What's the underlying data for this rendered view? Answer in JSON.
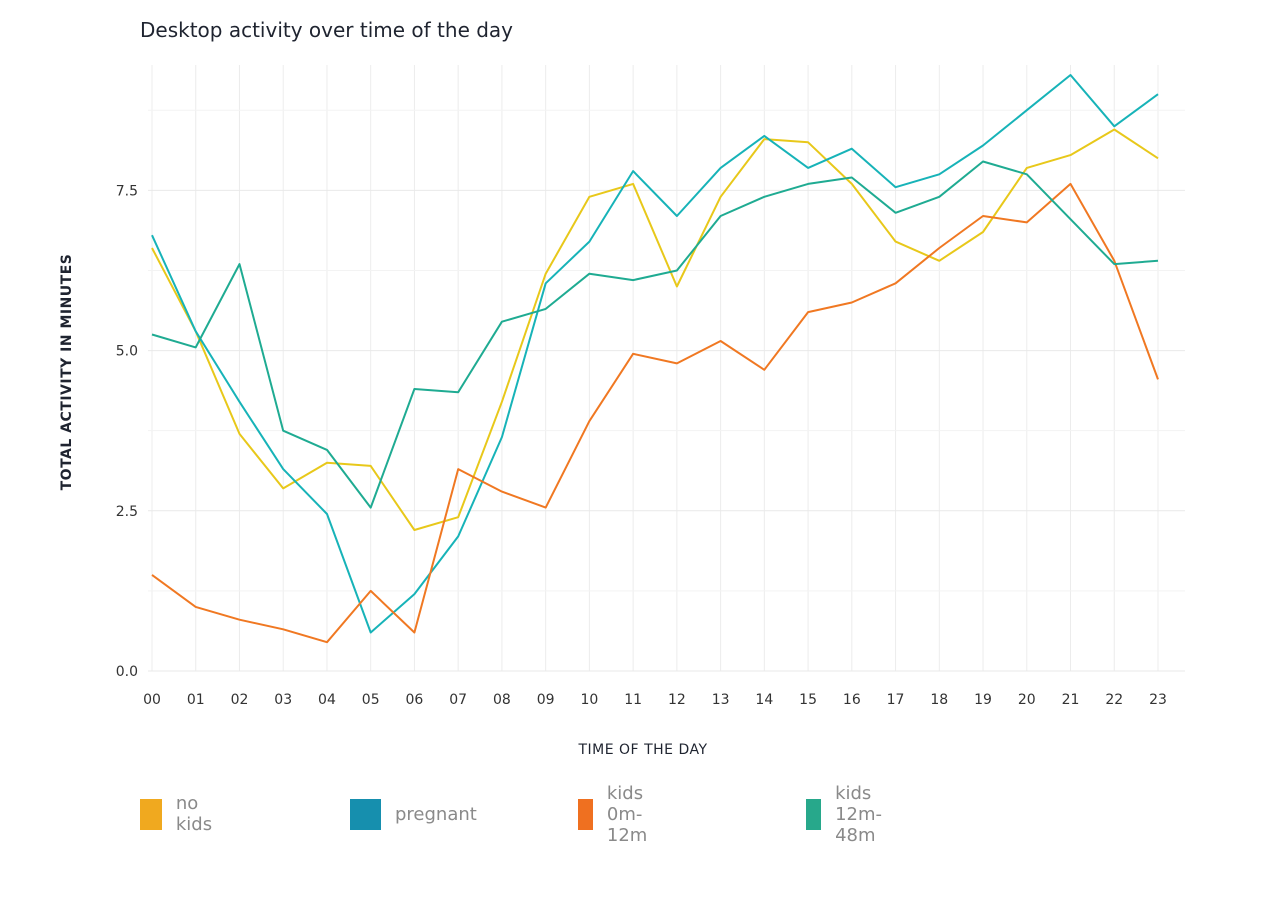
{
  "chart_data": {
    "type": "line",
    "title": "Desktop activity over time of the day",
    "xlabel": "TIME OF THE DAY",
    "ylabel": "TOTAL ACTIVITY IN MINUTES",
    "categories": [
      "00",
      "01",
      "02",
      "03",
      "04",
      "05",
      "06",
      "07",
      "08",
      "09",
      "10",
      "11",
      "12",
      "13",
      "14",
      "15",
      "16",
      "17",
      "18",
      "19",
      "20",
      "21",
      "22",
      "23"
    ],
    "yticks": [
      0.0,
      2.5,
      5.0,
      7.5
    ],
    "ytick_labels": [
      "0.0",
      "2.5",
      "5.0",
      "7.5"
    ],
    "ylim": [
      0,
      9.3
    ],
    "grid": true,
    "legend_position": "bottom",
    "series": [
      {
        "name": "no kids",
        "color": "#e8c81a",
        "legend_color": "#f0a91f",
        "values": [
          6.6,
          5.3,
          3.7,
          2.85,
          3.25,
          3.2,
          2.2,
          2.4,
          4.2,
          6.2,
          7.4,
          7.6,
          6.0,
          7.4,
          8.3,
          8.25,
          7.6,
          6.7,
          6.4,
          6.85,
          7.85,
          8.05,
          8.45,
          8.0
        ]
      },
      {
        "name": "pregnant",
        "color": "#17b3b8",
        "legend_color": "#168fae",
        "values": [
          6.8,
          5.3,
          4.2,
          3.15,
          2.45,
          0.6,
          1.2,
          2.1,
          3.65,
          6.05,
          6.7,
          7.8,
          7.1,
          7.85,
          8.35,
          7.85,
          8.15,
          7.55,
          7.75,
          8.2,
          8.75,
          9.3,
          8.5,
          9.0
        ]
      },
      {
        "name": "kids 0m-12m",
        "color": "#f07822",
        "legend_color": "#ef7020",
        "values": [
          1.5,
          1.0,
          0.8,
          0.65,
          0.45,
          1.25,
          0.6,
          3.15,
          2.8,
          2.55,
          3.9,
          4.95,
          4.8,
          5.15,
          4.7,
          5.6,
          5.75,
          6.05,
          6.6,
          7.1,
          7.0,
          7.6,
          6.4,
          4.55
        ]
      },
      {
        "name": "kids 12m-48m",
        "color": "#1fab92",
        "legend_color": "#27a88b",
        "values": [
          5.25,
          5.05,
          6.35,
          3.75,
          3.45,
          2.55,
          4.4,
          4.35,
          5.45,
          5.65,
          6.2,
          6.1,
          6.25,
          7.1,
          7.4,
          7.6,
          7.7,
          7.15,
          7.4,
          7.95,
          7.75,
          7.05,
          6.35,
          6.4
        ]
      }
    ]
  }
}
